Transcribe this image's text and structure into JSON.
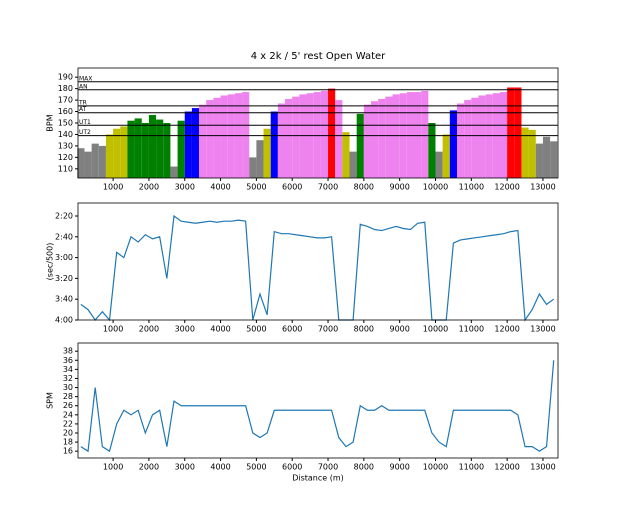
{
  "chart_data": [
    {
      "type": "bar",
      "title": "4 x 2k / 5' rest Open Water",
      "ylabel": "BPM",
      "x": [
        100,
        300,
        500,
        700,
        900,
        1100,
        1300,
        1500,
        1700,
        1900,
        2100,
        2300,
        2500,
        2700,
        2900,
        3100,
        3300,
        3500,
        3700,
        3900,
        4100,
        4300,
        4500,
        4700,
        4900,
        5100,
        5300,
        5500,
        5700,
        5900,
        6100,
        6300,
        6500,
        6700,
        6900,
        7100,
        7300,
        7500,
        7700,
        7900,
        8100,
        8300,
        8500,
        8700,
        8900,
        9100,
        9300,
        9500,
        9700,
        9900,
        10100,
        10300,
        10500,
        10700,
        10900,
        11100,
        11300,
        11500,
        11700,
        11900,
        12100,
        12300,
        12500,
        12700,
        12900,
        13100,
        13300
      ],
      "values": [
        128,
        125,
        132,
        130,
        140,
        145,
        147,
        152,
        154,
        150,
        157,
        153,
        150,
        112,
        152,
        160,
        163,
        166,
        170,
        172,
        174,
        175,
        176,
        177,
        120,
        135,
        145,
        160,
        167,
        171,
        173,
        175,
        176,
        177,
        178,
        180,
        170,
        142,
        125,
        158,
        166,
        169,
        171,
        173,
        175,
        176,
        177,
        177,
        178,
        150,
        125,
        140,
        161,
        167,
        170,
        172,
        174,
        175,
        176,
        177,
        181,
        181,
        146,
        144,
        132,
        138,
        134
      ],
      "base_color": "#808080",
      "zones": [
        {
          "name": "UT2",
          "value": 139,
          "color": "#c0c000"
        },
        {
          "name": "UT1",
          "value": 148,
          "color": "#008000"
        },
        {
          "name": "AT",
          "value": 159,
          "color": "#0000ff"
        },
        {
          "name": "TR",
          "value": 165,
          "color": "#ee82ee"
        },
        {
          "name": "AN",
          "value": 179,
          "color": "#ff0000"
        },
        {
          "name": "MAX",
          "value": 186,
          "color": "#ff0000"
        }
      ],
      "xlim": [
        20,
        13420
      ],
      "ylim": [
        102,
        198
      ],
      "xticks": [
        1000,
        2000,
        3000,
        4000,
        5000,
        6000,
        7000,
        8000,
        9000,
        10000,
        11000,
        12000,
        13000
      ],
      "yticks": [
        110,
        120,
        130,
        140,
        150,
        160,
        170,
        180,
        190
      ]
    },
    {
      "type": "line",
      "ylabel": "(sec/500)",
      "color": "#1f77b4",
      "x": [
        100,
        300,
        500,
        700,
        900,
        1100,
        1300,
        1500,
        1700,
        1900,
        2100,
        2300,
        2500,
        2700,
        2900,
        3100,
        3300,
        3500,
        3700,
        3900,
        4100,
        4300,
        4500,
        4700,
        4900,
        5100,
        5300,
        5500,
        5700,
        5900,
        6100,
        6300,
        6500,
        6700,
        6900,
        7100,
        7300,
        7500,
        7700,
        7900,
        8100,
        8300,
        8500,
        8700,
        8900,
        9100,
        9300,
        9500,
        9700,
        9900,
        10100,
        10300,
        10500,
        10700,
        10900,
        11100,
        11300,
        11500,
        11700,
        11900,
        12100,
        12300,
        12500,
        12700,
        12900,
        13100,
        13300
      ],
      "values": [
        225,
        230,
        240,
        232,
        240,
        175,
        180,
        160,
        165,
        158,
        162,
        160,
        200,
        140,
        145,
        146,
        147,
        146,
        145,
        146,
        145,
        145,
        144,
        145,
        240,
        215,
        235,
        155,
        157,
        157,
        158,
        159,
        160,
        161,
        161,
        160,
        240,
        240,
        240,
        148,
        150,
        153,
        154,
        152,
        150,
        152,
        153,
        147,
        146,
        240,
        240,
        240,
        166,
        163,
        162,
        161,
        160,
        159,
        158,
        157,
        155,
        154,
        240,
        230,
        215,
        225,
        220
      ],
      "xlim": [
        20,
        13420
      ],
      "ylim": [
        240,
        127.5
      ],
      "xticks": [
        1000,
        2000,
        3000,
        4000,
        5000,
        6000,
        7000,
        8000,
        9000,
        10000,
        11000,
        12000,
        13000
      ],
      "yticks": [
        {
          "value": 140,
          "label": "2:20"
        },
        {
          "value": 160,
          "label": "2:40"
        },
        {
          "value": 180,
          "label": "3:00"
        },
        {
          "value": 200,
          "label": "3:20"
        },
        {
          "value": 220,
          "label": "3:40"
        },
        {
          "value": 240,
          "label": "4:00"
        }
      ]
    },
    {
      "type": "line",
      "ylabel": "SPM",
      "xlabel": "Distance (m)",
      "color": "#1f77b4",
      "x": [
        100,
        300,
        500,
        700,
        900,
        1100,
        1300,
        1500,
        1700,
        1900,
        2100,
        2300,
        2500,
        2700,
        2900,
        3100,
        3300,
        3500,
        3700,
        3900,
        4100,
        4300,
        4500,
        4700,
        4900,
        5100,
        5300,
        5500,
        5700,
        5900,
        6100,
        6300,
        6500,
        6700,
        6900,
        7100,
        7300,
        7500,
        7700,
        7900,
        8100,
        8300,
        8500,
        8700,
        8900,
        9100,
        9300,
        9500,
        9700,
        9900,
        10100,
        10300,
        10500,
        10700,
        10900,
        11100,
        11300,
        11500,
        11700,
        11900,
        12100,
        12300,
        12500,
        12700,
        12900,
        13100,
        13300
      ],
      "values": [
        17,
        16,
        30,
        17,
        16,
        22,
        25,
        24,
        25,
        20,
        24,
        25,
        17,
        27,
        26,
        26,
        26,
        26,
        26,
        26,
        26,
        26,
        26,
        26,
        20,
        19,
        20,
        25,
        25,
        25,
        25,
        25,
        25,
        25,
        25,
        25,
        19,
        17,
        18,
        26,
        25,
        25,
        26,
        25,
        25,
        25,
        25,
        25,
        25,
        20,
        18,
        17,
        25,
        25,
        25,
        25,
        25,
        25,
        25,
        25,
        25,
        24,
        17,
        17,
        16,
        17,
        36
      ],
      "xlim": [
        20,
        13420
      ],
      "ylim": [
        14.5,
        39.8
      ],
      "xticks": [
        1000,
        2000,
        3000,
        4000,
        5000,
        6000,
        7000,
        8000,
        9000,
        10000,
        11000,
        12000,
        13000
      ],
      "yticks": [
        16,
        18,
        20,
        22,
        24,
        26,
        28,
        30,
        32,
        34,
        36,
        38
      ]
    }
  ]
}
